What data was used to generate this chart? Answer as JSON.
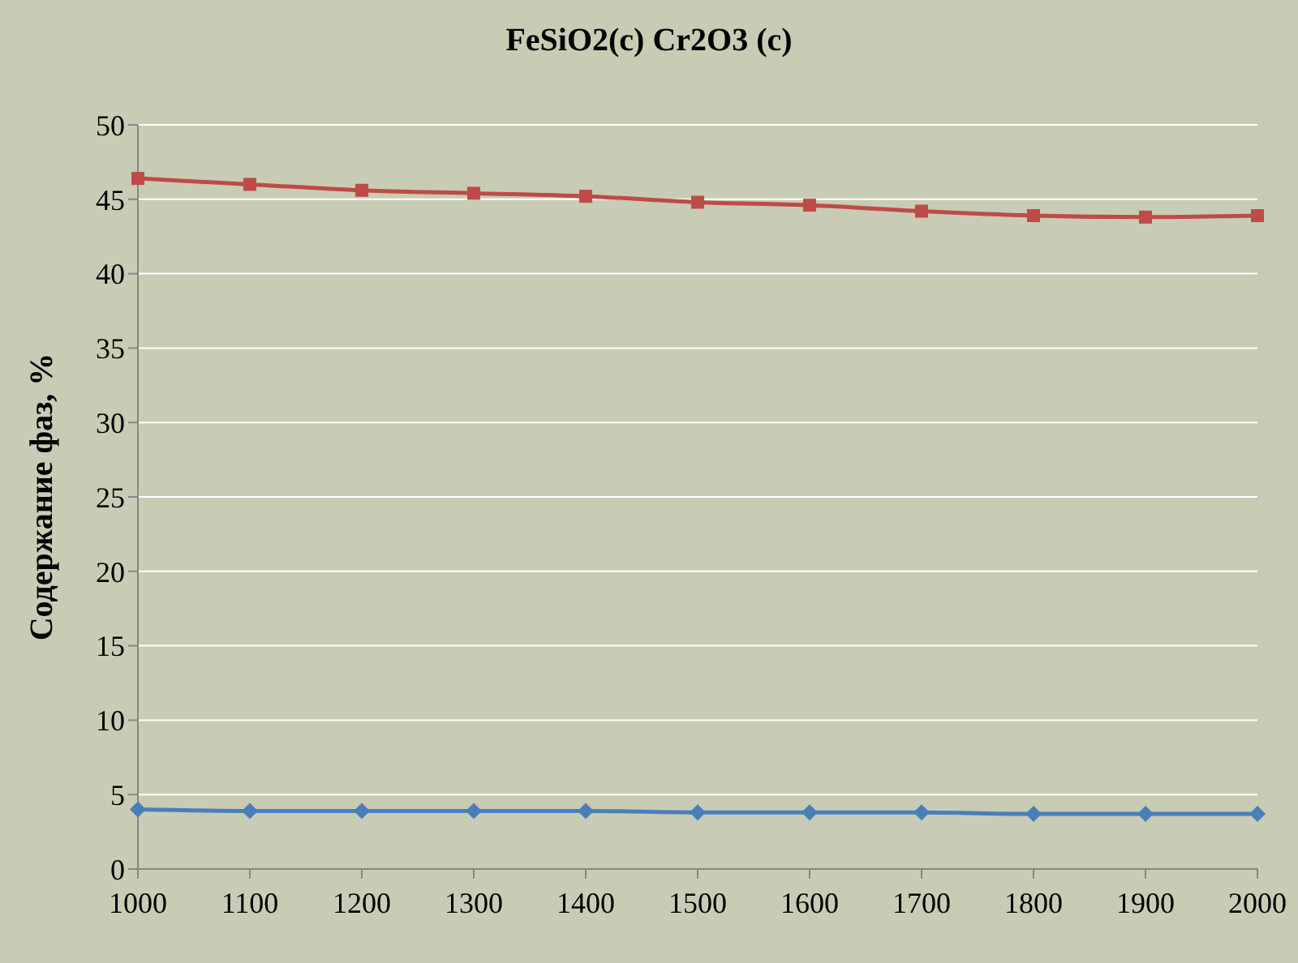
{
  "chart_data": {
    "type": "line",
    "title": "FeSiO2(c) Cr2O3 (c)",
    "ylabel": "Содержание фаз, %",
    "categories": [
      "1000",
      "1100",
      "1200",
      "1300",
      "1400",
      "1500",
      "1600",
      "1700",
      "1800",
      "1900",
      "2000"
    ],
    "series": [
      {
        "color": "#be4b48",
        "marker": "square",
        "values": [
          46.4,
          46.0,
          45.6,
          45.4,
          45.2,
          44.8,
          44.6,
          44.2,
          43.9,
          43.8,
          43.9
        ]
      },
      {
        "color": "#4a7ebb",
        "marker": "diamond",
        "values": [
          4.0,
          3.9,
          3.9,
          3.9,
          3.9,
          3.8,
          3.8,
          3.8,
          3.7,
          3.7,
          3.7
        ]
      }
    ],
    "ylim": [
      0,
      50
    ],
    "yticks": [
      0,
      5,
      10,
      15,
      20,
      25,
      30,
      35,
      40,
      45,
      50
    ],
    "grid": "y"
  }
}
